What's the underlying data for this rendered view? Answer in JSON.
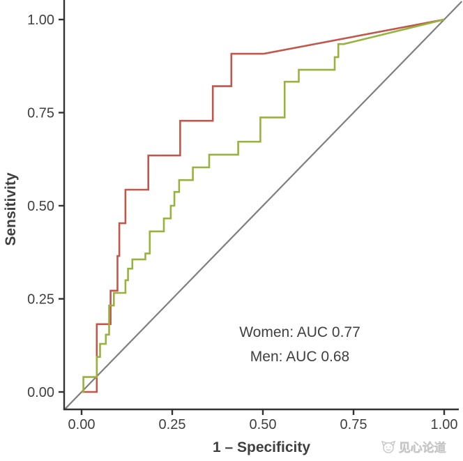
{
  "chart_data": {
    "type": "line",
    "subtype": "roc-curve",
    "title": "",
    "xlabel": "1 – Specificity",
    "ylabel": "Sensitivity",
    "xlim": [
      0,
      1
    ],
    "ylim": [
      0,
      1
    ],
    "grid": false,
    "legend_position": "inside-bottom-right",
    "xticks": [
      "0.00",
      "0.25",
      "0.50",
      "0.75",
      "1.00"
    ],
    "yticks": [
      "0.00",
      "0.25",
      "0.50",
      "0.75",
      "1.00"
    ],
    "xtick_values": [
      0,
      0.25,
      0.5,
      0.75,
      1
    ],
    "ytick_values": [
      0,
      0.25,
      0.5,
      0.75,
      1
    ],
    "reference_line": {
      "from": [
        0,
        0
      ],
      "to": [
        1,
        1
      ],
      "color": "#7e7e7e"
    },
    "series": [
      {
        "name": "Women",
        "auc": 0.77,
        "label": "Women: AUC 0.77",
        "color": "#c1564b",
        "points": [
          [
            0,
            0
          ],
          [
            0.042,
            0
          ],
          [
            0.042,
            0.182
          ],
          [
            0.08,
            0.182
          ],
          [
            0.08,
            0.272
          ],
          [
            0.099,
            0.272
          ],
          [
            0.099,
            0.365
          ],
          [
            0.104,
            0.365
          ],
          [
            0.104,
            0.453
          ],
          [
            0.121,
            0.453
          ],
          [
            0.121,
            0.543
          ],
          [
            0.184,
            0.543
          ],
          [
            0.184,
            0.635
          ],
          [
            0.272,
            0.635
          ],
          [
            0.272,
            0.728
          ],
          [
            0.362,
            0.728
          ],
          [
            0.362,
            0.821
          ],
          [
            0.413,
            0.821
          ],
          [
            0.413,
            0.908
          ],
          [
            0.502,
            0.908
          ],
          [
            1,
            1
          ]
        ]
      },
      {
        "name": "Men",
        "auc": 0.68,
        "label": "Men: AUC 0.68",
        "color": "#98b23e",
        "points": [
          [
            0,
            0
          ],
          [
            0.005,
            0
          ],
          [
            0.005,
            0.04
          ],
          [
            0.042,
            0.04
          ],
          [
            0.042,
            0.094
          ],
          [
            0.051,
            0.094
          ],
          [
            0.051,
            0.129
          ],
          [
            0.067,
            0.129
          ],
          [
            0.067,
            0.154
          ],
          [
            0.076,
            0.154
          ],
          [
            0.076,
            0.232
          ],
          [
            0.089,
            0.232
          ],
          [
            0.089,
            0.266
          ],
          [
            0.121,
            0.266
          ],
          [
            0.121,
            0.3
          ],
          [
            0.128,
            0.3
          ],
          [
            0.128,
            0.331
          ],
          [
            0.14,
            0.331
          ],
          [
            0.14,
            0.356
          ],
          [
            0.176,
            0.356
          ],
          [
            0.176,
            0.372
          ],
          [
            0.188,
            0.372
          ],
          [
            0.188,
            0.431
          ],
          [
            0.227,
            0.431
          ],
          [
            0.227,
            0.466
          ],
          [
            0.246,
            0.466
          ],
          [
            0.246,
            0.5
          ],
          [
            0.256,
            0.5
          ],
          [
            0.256,
            0.537
          ],
          [
            0.269,
            0.537
          ],
          [
            0.269,
            0.569
          ],
          [
            0.307,
            0.569
          ],
          [
            0.307,
            0.603
          ],
          [
            0.352,
            0.603
          ],
          [
            0.352,
            0.637
          ],
          [
            0.432,
            0.637
          ],
          [
            0.432,
            0.672
          ],
          [
            0.493,
            0.672
          ],
          [
            0.493,
            0.737
          ],
          [
            0.56,
            0.737
          ],
          [
            0.56,
            0.833
          ],
          [
            0.599,
            0.833
          ],
          [
            0.599,
            0.865
          ],
          [
            0.698,
            0.865
          ],
          [
            0.698,
            0.899
          ],
          [
            0.708,
            0.899
          ],
          [
            0.708,
            0.934
          ],
          [
            0.723,
            0.934
          ],
          [
            1,
            1
          ]
        ]
      }
    ]
  },
  "colors": {
    "axis": "#333333",
    "tick_text": "#3f3f3f",
    "diagonal": "#7e7e7e",
    "women": "#c1564b",
    "men": "#98b23e",
    "watermark": "#c7c7c7"
  },
  "watermark": {
    "text": "见心论道"
  }
}
